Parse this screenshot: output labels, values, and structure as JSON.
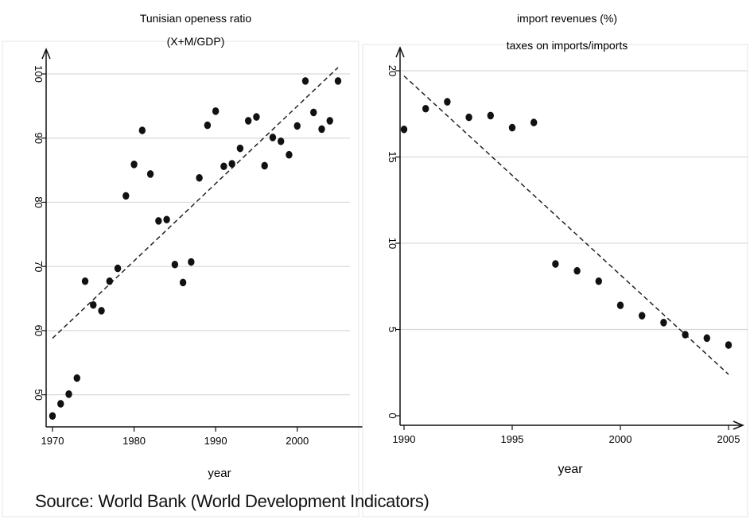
{
  "source_note": "Source: World Bank (World Development Indicators)",
  "chart_data": [
    {
      "type": "scatter",
      "title": "Tunisian openess ratio",
      "subtitle": "(X+M/GDP)",
      "xlabel": "year",
      "ylabel": "",
      "xlim": [
        1970,
        2005
      ],
      "ylim": [
        45,
        100
      ],
      "xticks": [
        1970,
        1980,
        1990,
        2000
      ],
      "yticks": [
        50,
        60,
        70,
        80,
        90,
        100
      ],
      "grid": true,
      "marker_color": "#111111",
      "fit_line": {
        "style": "dashed",
        "x": [
          1970,
          2005
        ],
        "y": [
          58.8,
          101
        ]
      },
      "series": [
        {
          "x": [
            1970,
            1971,
            1972,
            1973,
            1974,
            1975,
            1976,
            1977,
            1978,
            1979,
            1980,
            1981,
            1982,
            1983,
            1984,
            1985,
            1986,
            1987,
            1988,
            1989,
            1990,
            1991,
            1992,
            1993,
            1994,
            1995,
            1996,
            1997,
            1998,
            1999,
            2000,
            2001,
            2002,
            2003,
            2004,
            2005
          ],
          "y": [
            46.7,
            48.6,
            50.1,
            52.6,
            67.7,
            64.0,
            63.1,
            67.7,
            69.7,
            81.0,
            85.9,
            91.2,
            84.4,
            77.1,
            77.3,
            70.3,
            67.5,
            70.7,
            83.8,
            92.0,
            94.2,
            85.6,
            86.0,
            88.4,
            92.7,
            93.3,
            85.7,
            90.1,
            89.5,
            87.4,
            91.9,
            98.9,
            94.0,
            91.4,
            92.7,
            98.9
          ]
        }
      ]
    },
    {
      "type": "scatter",
      "title": "import revenues (%)",
      "subtitle": "taxes on imports/imports",
      "xlabel": "year",
      "ylabel": "",
      "xlim": [
        1990,
        2005
      ],
      "ylim": [
        0,
        20
      ],
      "xticks": [
        1990,
        1995,
        2000,
        2005
      ],
      "yticks": [
        0,
        5,
        10,
        15,
        20
      ],
      "grid": true,
      "marker_color": "#111111",
      "fit_line": {
        "style": "dashed",
        "x": [
          1990,
          2005
        ],
        "y": [
          19.7,
          2.4
        ]
      },
      "series": [
        {
          "x": [
            1990,
            1991,
            1992,
            1993,
            1994,
            1995,
            1996,
            1997,
            1998,
            1999,
            2000,
            2001,
            2002,
            2003,
            2004,
            2005
          ],
          "y": [
            16.6,
            17.8,
            18.2,
            17.3,
            17.4,
            16.7,
            17.0,
            8.8,
            8.4,
            7.8,
            6.4,
            5.8,
            5.4,
            4.7,
            4.5,
            4.1
          ]
        }
      ]
    }
  ]
}
